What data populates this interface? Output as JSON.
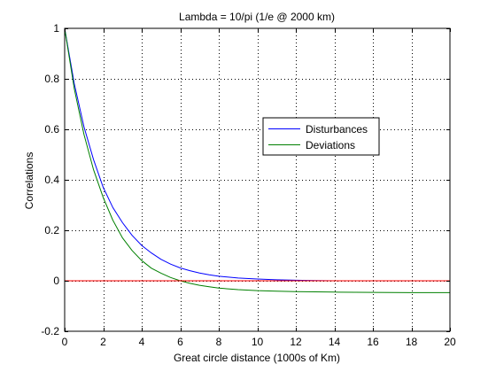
{
  "chart_data": {
    "type": "line",
    "title": "Lambda = 10/pi (1/e @ 2000 km)",
    "xlabel": "Great circle distance (1000s of Km)",
    "ylabel": "Correlations",
    "xlim": [
      0,
      20
    ],
    "ylim": [
      -0.2,
      1
    ],
    "xticks": [
      0,
      2,
      4,
      6,
      8,
      10,
      12,
      14,
      16,
      18,
      20
    ],
    "xtick_labels": [
      "0",
      "2",
      "4",
      "6",
      "8",
      "10",
      "12",
      "14",
      "16",
      "18",
      "20"
    ],
    "yticks": [
      -0.2,
      0,
      0.2,
      0.4,
      0.6,
      0.8,
      1
    ],
    "ytick_labels": [
      "-0.2",
      "0",
      "0.2",
      "0.4",
      "0.6",
      "0.8",
      "1"
    ],
    "grid": true,
    "legend_position": "upper-right",
    "series": [
      {
        "name": "Disturbances",
        "color": "#0000ff",
        "x": [
          0,
          0.5,
          1,
          1.5,
          2,
          2.5,
          3,
          3.5,
          4,
          4.5,
          5,
          5.5,
          6,
          6.5,
          7,
          7.5,
          8,
          9,
          10,
          11,
          12,
          13,
          14,
          16,
          18,
          20
        ],
        "y": [
          1.0,
          0.78,
          0.61,
          0.48,
          0.37,
          0.29,
          0.23,
          0.18,
          0.14,
          0.11,
          0.085,
          0.066,
          0.051,
          0.04,
          0.031,
          0.024,
          0.018,
          0.011,
          0.007,
          0.004,
          0.002,
          0.001,
          0.0,
          0.0,
          0.0,
          0.0
        ]
      },
      {
        "name": "Deviations",
        "color": "#008000",
        "x": [
          0,
          0.5,
          1,
          1.5,
          2,
          2.5,
          3,
          3.5,
          4,
          4.5,
          5,
          5.5,
          6,
          6.5,
          7,
          7.5,
          8,
          9,
          10,
          11,
          12,
          13,
          14,
          16,
          18,
          20
        ],
        "y": [
          1.0,
          0.76,
          0.58,
          0.44,
          0.33,
          0.24,
          0.17,
          0.12,
          0.08,
          0.05,
          0.03,
          0.013,
          0.0,
          -0.01,
          -0.018,
          -0.024,
          -0.029,
          -0.035,
          -0.039,
          -0.041,
          -0.043,
          -0.044,
          -0.045,
          -0.046,
          -0.047,
          -0.047
        ]
      },
      {
        "color": "#ff0000",
        "x": [
          0,
          20
        ],
        "y": [
          0,
          0
        ]
      }
    ]
  }
}
